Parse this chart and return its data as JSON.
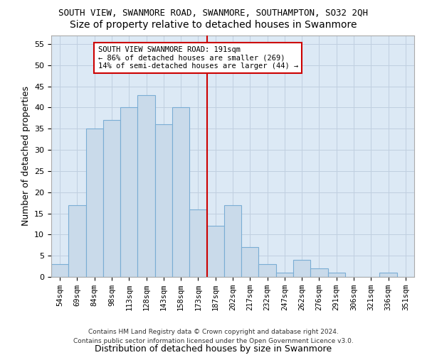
{
  "title": "SOUTH VIEW, SWANMORE ROAD, SWANMORE, SOUTHAMPTON, SO32 2QH",
  "subtitle": "Size of property relative to detached houses in Swanmore",
  "xlabel": "Distribution of detached houses by size in Swanmore",
  "ylabel": "Number of detached properties",
  "categories": [
    "54sqm",
    "69sqm",
    "84sqm",
    "98sqm",
    "113sqm",
    "128sqm",
    "143sqm",
    "158sqm",
    "173sqm",
    "187sqm",
    "202sqm",
    "217sqm",
    "232sqm",
    "247sqm",
    "262sqm",
    "276sqm",
    "291sqm",
    "306sqm",
    "321sqm",
    "336sqm",
    "351sqm"
  ],
  "values": [
    3,
    17,
    35,
    37,
    40,
    43,
    36,
    40,
    16,
    12,
    17,
    7,
    3,
    1,
    4,
    2,
    1,
    0,
    0,
    1,
    0
  ],
  "bar_color": "#c9daea",
  "bar_edge_color": "#7aadd4",
  "annotation_text": "SOUTH VIEW SWANMORE ROAD: 191sqm\n← 86% of detached houses are smaller (269)\n14% of semi-detached houses are larger (44) →",
  "annotation_box_color": "#ffffff",
  "annotation_box_edge_color": "#cc0000",
  "reference_line_color": "#cc0000",
  "ylim": [
    0,
    57
  ],
  "yticks": [
    0,
    5,
    10,
    15,
    20,
    25,
    30,
    35,
    40,
    45,
    50,
    55
  ],
  "grid_color": "#c0cfe0",
  "background_color": "#dce9f5",
  "footer_line1": "Contains HM Land Registry data © Crown copyright and database right 2024.",
  "footer_line2": "Contains public sector information licensed under the Open Government Licence v3.0.",
  "title_fontsize": 9,
  "subtitle_fontsize": 10,
  "axis_label_fontsize": 9
}
